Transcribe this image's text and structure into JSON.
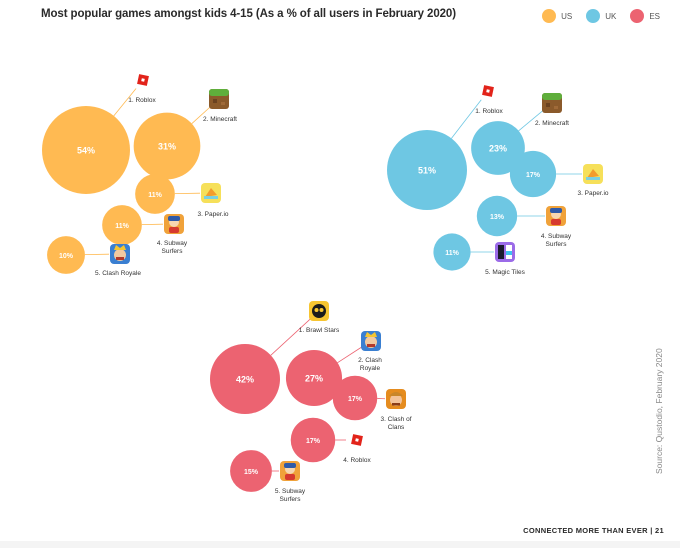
{
  "title": "Most popular games amongst kids 4-15 (As a % of all users in February 2020)",
  "legend": [
    {
      "label": "US",
      "color": "#ffba52"
    },
    {
      "label": "UK",
      "color": "#6ec7e3"
    },
    {
      "label": "ES",
      "color": "#ec6371"
    }
  ],
  "source": "Source: Qustodio, February 2020",
  "footer": "CONNECTED MORE THAN EVER  |  21",
  "chart_data": [
    {
      "type": "bubble",
      "region": "US",
      "color": "#ffba52",
      "games": [
        {
          "rank": 1,
          "name": "Roblox",
          "label": "1. Roblox",
          "value": 54,
          "value_label": "54%",
          "icon": "roblox-icon"
        },
        {
          "rank": 2,
          "name": "Minecraft",
          "label": "2. Minecraft",
          "value": 31,
          "value_label": "31%",
          "icon": "minecraft-icon"
        },
        {
          "rank": 3,
          "name": "Paper.io",
          "label": "3. Paper.io",
          "value": 11,
          "value_label": "11%",
          "icon": "paperio-icon"
        },
        {
          "rank": 4,
          "name": "Subway Surfers",
          "label": "4. Subway Surfers",
          "value": 11,
          "value_label": "11%",
          "icon": "subway-surfers-icon"
        },
        {
          "rank": 5,
          "name": "Clash Royale",
          "label": "5. Clash Royale",
          "value": 10,
          "value_label": "10%",
          "icon": "clash-royale-icon"
        }
      ]
    },
    {
      "type": "bubble",
      "region": "UK",
      "color": "#6ec7e3",
      "games": [
        {
          "rank": 1,
          "name": "Roblox",
          "label": "1. Roblox",
          "value": 51,
          "value_label": "51%",
          "icon": "roblox-icon"
        },
        {
          "rank": 2,
          "name": "Minecraft",
          "label": "2. Minecraft",
          "value": 23,
          "value_label": "23%",
          "icon": "minecraft-icon"
        },
        {
          "rank": 3,
          "name": "Paper.io",
          "label": "3. Paper.io",
          "value": 17,
          "value_label": "17%",
          "icon": "paperio-icon"
        },
        {
          "rank": 4,
          "name": "Subway Surfers",
          "label": "4. Subway Surfers",
          "value": 13,
          "value_label": "13%",
          "icon": "subway-surfers-icon"
        },
        {
          "rank": 5,
          "name": "Magic Tiles",
          "label": "5. Magic Tiles",
          "value": 11,
          "value_label": "11%",
          "icon": "magic-tiles-icon"
        }
      ]
    },
    {
      "type": "bubble",
      "region": "ES",
      "color": "#ec6371",
      "games": [
        {
          "rank": 1,
          "name": "Brawl Stars",
          "label": "1. Brawl Stars",
          "value": 42,
          "value_label": "42%",
          "icon": "brawl-stars-icon"
        },
        {
          "rank": 2,
          "name": "Clash Royale",
          "label": "2. Clash Royale",
          "value": 27,
          "value_label": "27%",
          "icon": "clash-royale-icon"
        },
        {
          "rank": 3,
          "name": "Clash of Clans",
          "label": "3. Clash of Clans",
          "value": 17,
          "value_label": "17%",
          "icon": "clash-of-clans-icon"
        },
        {
          "rank": 4,
          "name": "Roblox",
          "label": "4. Roblox",
          "value": 17,
          "value_label": "17%",
          "icon": "roblox-icon"
        },
        {
          "rank": 5,
          "name": "Subway Surfers",
          "label": "5. Subway Surfers",
          "value": 15,
          "value_label": "15%",
          "icon": "subway-surfers-icon"
        }
      ]
    }
  ]
}
